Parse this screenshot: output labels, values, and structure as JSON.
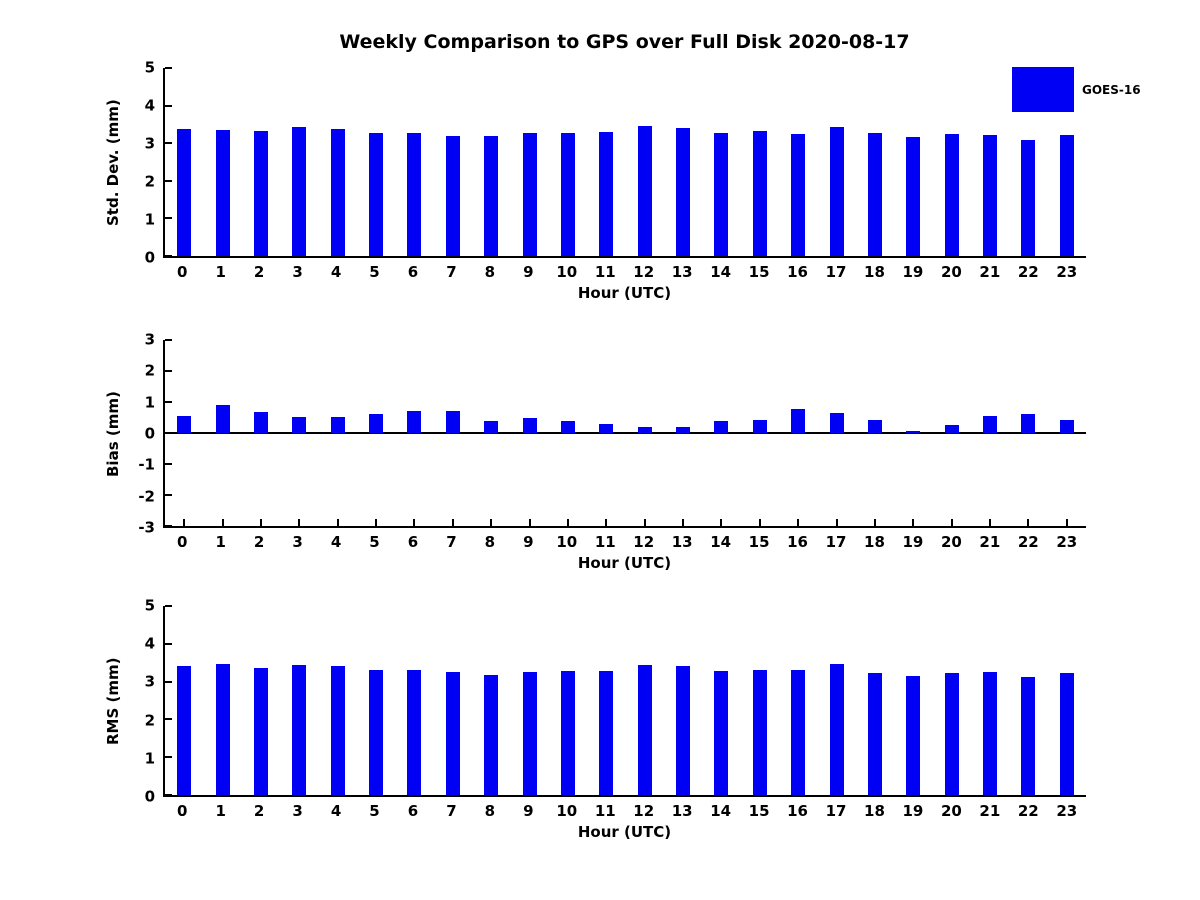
{
  "title": "Weekly Comparison to GPS over Full Disk 2020-08-17",
  "legend": {
    "label": "GOES-16",
    "color": "#0000f5"
  },
  "colors": {
    "bar": "#0000f5",
    "axis": "#000000",
    "background": "#ffffff"
  },
  "chart_data": [
    {
      "type": "bar",
      "name": "std-dev-panel",
      "title": "",
      "xlabel": "Hour (UTC)",
      "ylabel": "Std. Dev. (mm)",
      "ylim": [
        0,
        5
      ],
      "yticks": [
        0,
        1,
        2,
        3,
        4,
        5
      ],
      "grid": false,
      "legend_position": "upper-right-outside",
      "categories": [
        "0",
        "1",
        "2",
        "3",
        "4",
        "5",
        "6",
        "7",
        "8",
        "9",
        "10",
        "11",
        "12",
        "13",
        "14",
        "15",
        "16",
        "17",
        "18",
        "19",
        "20",
        "21",
        "22",
        "23"
      ],
      "series": [
        {
          "name": "GOES-16",
          "values": [
            3.38,
            3.36,
            3.33,
            3.44,
            3.38,
            3.28,
            3.28,
            3.19,
            3.19,
            3.27,
            3.27,
            3.31,
            3.47,
            3.4,
            3.27,
            3.33,
            3.25,
            3.44,
            3.26,
            3.17,
            3.25,
            3.23,
            3.08,
            3.23
          ]
        }
      ],
      "zero_line": false
    },
    {
      "type": "bar",
      "name": "bias-panel",
      "title": "",
      "xlabel": "Hour (UTC)",
      "ylabel": "Bias (mm)",
      "ylim": [
        -3,
        3
      ],
      "yticks": [
        -3,
        -2,
        -1,
        0,
        1,
        2,
        3
      ],
      "grid": false,
      "categories": [
        "0",
        "1",
        "2",
        "3",
        "4",
        "5",
        "6",
        "7",
        "8",
        "9",
        "10",
        "11",
        "12",
        "13",
        "14",
        "15",
        "16",
        "17",
        "18",
        "19",
        "20",
        "21",
        "22",
        "23"
      ],
      "series": [
        {
          "name": "GOES-16",
          "values": [
            0.55,
            0.9,
            0.68,
            0.53,
            0.53,
            0.62,
            0.7,
            0.7,
            0.4,
            0.47,
            0.4,
            0.28,
            0.18,
            0.19,
            0.4,
            0.41,
            0.78,
            0.63,
            0.42,
            0.05,
            0.25,
            0.56,
            0.6,
            0.41
          ]
        }
      ],
      "zero_line": true
    },
    {
      "type": "bar",
      "name": "rms-panel",
      "title": "",
      "xlabel": "Hour (UTC)",
      "ylabel": "RMS (mm)",
      "ylim": [
        0,
        5
      ],
      "yticks": [
        0,
        1,
        2,
        3,
        4,
        5
      ],
      "grid": false,
      "categories": [
        "0",
        "1",
        "2",
        "3",
        "4",
        "5",
        "6",
        "7",
        "8",
        "9",
        "10",
        "11",
        "12",
        "13",
        "14",
        "15",
        "16",
        "17",
        "18",
        "19",
        "20",
        "21",
        "22",
        "23"
      ],
      "series": [
        {
          "name": "GOES-16",
          "values": [
            3.4,
            3.46,
            3.37,
            3.43,
            3.4,
            3.3,
            3.31,
            3.26,
            3.18,
            3.26,
            3.29,
            3.29,
            3.45,
            3.4,
            3.27,
            3.32,
            3.32,
            3.46,
            3.24,
            3.16,
            3.22,
            3.25,
            3.11,
            3.24
          ]
        }
      ],
      "zero_line": false
    }
  ]
}
